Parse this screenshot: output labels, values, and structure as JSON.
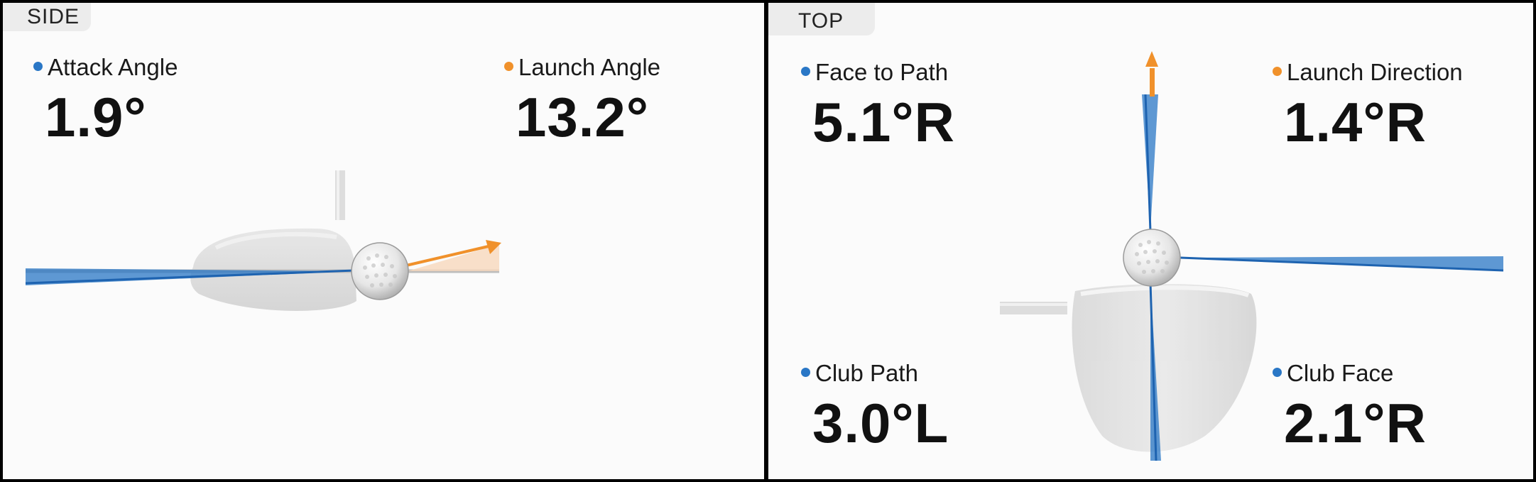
{
  "colors": {
    "blue": "#2a77c6",
    "orange": "#f0912b",
    "background": "#fbfbfb",
    "border": "#000000"
  },
  "side": {
    "tab_label": "SIDE",
    "attack_angle": {
      "label": "Attack Angle",
      "value": "1.9°"
    },
    "launch_angle": {
      "label": "Launch Angle",
      "value": "13.2°"
    }
  },
  "top": {
    "tab_label": "TOP",
    "face_to_path": {
      "label": "Face to Path",
      "value": "5.1°R"
    },
    "launch_direction": {
      "label": "Launch Direction",
      "value": "1.4°R"
    },
    "club_path": {
      "label": "Club Path",
      "value": "3.0°L"
    },
    "club_face": {
      "label": "Club Face",
      "value": "2.1°R"
    }
  }
}
